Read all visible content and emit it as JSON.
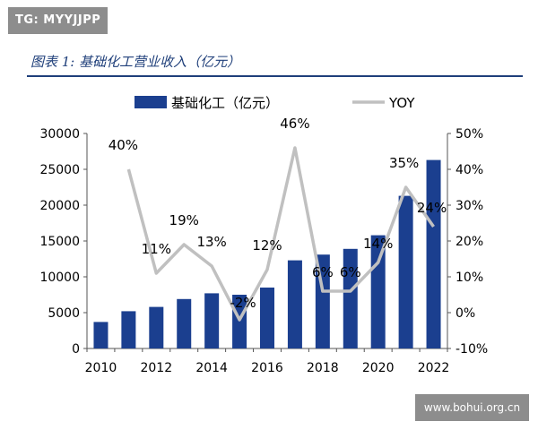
{
  "badge": "TG: MYYJJPP",
  "figure_title": "图表 1:  基础化工营业收入（亿元）",
  "watermark": "www.bohui.org.cn",
  "colors": {
    "bar": "#1b3f8f",
    "line": "#c0c0c0",
    "title": "#1f3f7a"
  },
  "chart_data": {
    "type": "bar",
    "categories": [
      "2010",
      "2011",
      "2012",
      "2013",
      "2014",
      "2015",
      "2016",
      "2017",
      "2018",
      "2019",
      "2020",
      "2021",
      "2022"
    ],
    "x_tick_labels": [
      "2010",
      "2012",
      "2014",
      "2016",
      "2018",
      "2020",
      "2022"
    ],
    "series": [
      {
        "name": "基础化工（亿元）",
        "axis": "left",
        "type": "bar",
        "values": [
          3700,
          5200,
          5800,
          6900,
          7700,
          7500,
          8500,
          12300,
          13100,
          13900,
          15800,
          21300,
          26300
        ]
      },
      {
        "name": "YOY",
        "axis": "right",
        "type": "line",
        "values": [
          null,
          40,
          11,
          19,
          13,
          -2,
          12,
          46,
          6,
          6,
          14,
          35,
          24
        ],
        "labels": [
          "",
          "40%",
          "11%",
          "19%",
          "13%",
          "-2%",
          "12%",
          "46%",
          "6%",
          "6%",
          "14%",
          "35%",
          "24%"
        ]
      }
    ],
    "y_left": {
      "lim": [
        0,
        30000
      ],
      "ticks": [
        "0",
        "5000",
        "10000",
        "15000",
        "20000",
        "25000",
        "30000"
      ]
    },
    "y_right": {
      "lim": [
        -10,
        50
      ],
      "ticks": [
        "-10%",
        "0%",
        "10%",
        "20%",
        "30%",
        "40%",
        "50%"
      ]
    },
    "legend_position": "top",
    "grid": false
  }
}
